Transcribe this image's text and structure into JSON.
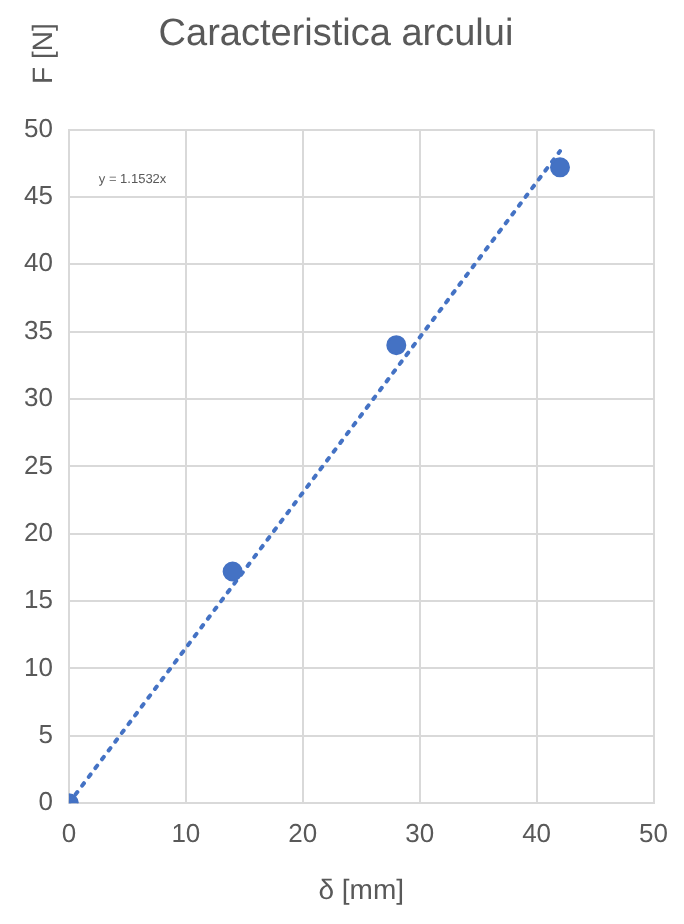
{
  "chart_data": {
    "type": "scatter",
    "title": "Caracteristica arcului",
    "xlabel": "δ [mm]",
    "ylabel": "F [N]",
    "series": [
      {
        "color": "#4472c4",
        "x": [
          0,
          14,
          28,
          42
        ],
        "values": [
          0,
          17.2,
          34,
          47.2
        ],
        "marker": "circle"
      },
      {
        "type": "line",
        "color": "#4472c4",
        "x": [
          0,
          42
        ],
        "values": [
          0,
          48.4
        ],
        "marker": "none",
        "line_style": "dotted"
      }
    ],
    "xlim": [
      0,
      50
    ],
    "xticks": [
      0,
      10,
      20,
      30,
      40,
      50
    ],
    "ylim": [
      0,
      50
    ],
    "yticks": [
      0,
      5,
      10,
      15,
      20,
      25,
      30,
      35,
      40,
      45,
      50
    ],
    "grid": true,
    "legend": false,
    "annotations": [
      "y = 1.1532x"
    ]
  }
}
